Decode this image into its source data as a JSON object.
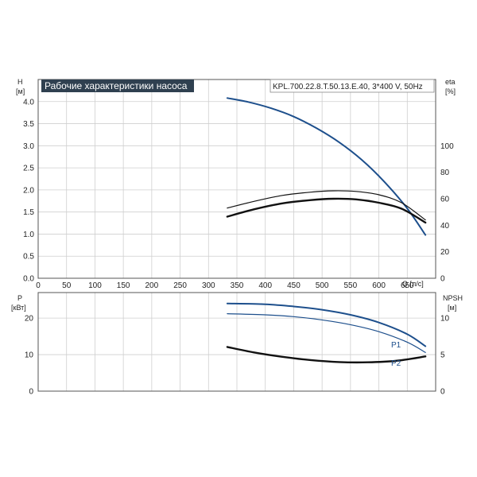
{
  "chart_data": [
    {
      "type": "line",
      "title": "Рабочие характеристики насоса",
      "subtitle": "KPL.700.22.8.T.50.13.E.40, 3*400 V, 50Hz",
      "xlabel": "Q [л/с]",
      "ylabel": "H [м]",
      "ylabel_name": "H",
      "ylabel_unit": "[м]",
      "y2label_name": "eta",
      "y2label_unit": "[%]",
      "x_unit_label": "Q [л/с]",
      "xlim": [
        0,
        700
      ],
      "ylim": [
        0,
        4.5
      ],
      "y2lim": [
        0,
        150
      ],
      "x_ticks": [
        "0",
        "50",
        "100",
        "150",
        "200",
        "250",
        "300",
        "350",
        "400",
        "450",
        "500",
        "550",
        "600",
        "650"
      ],
      "y_ticks": [
        "0.0",
        "0.5",
        "1.0",
        "1.5",
        "2.0",
        "2.5",
        "3.0",
        "3.5",
        "4.0"
      ],
      "y2_ticks": [
        "0",
        "20",
        "40",
        "60",
        "80",
        "100"
      ],
      "grid": true,
      "series": [
        {
          "axis": "left",
          "color": "#1d4f8c",
          "x": [
            333,
            370,
            410,
            450,
            490,
            530,
            570,
            610,
            650,
            682
          ],
          "y": [
            4.08,
            3.99,
            3.85,
            3.66,
            3.4,
            3.08,
            2.68,
            2.18,
            1.58,
            0.98
          ]
        },
        {
          "axis": "right",
          "color": "#111111",
          "x": [
            333,
            380,
            430,
            480,
            520,
            560,
            600,
            640,
            682
          ],
          "y": [
            53,
            58,
            62.5,
            65,
            66,
            65.5,
            63,
            57,
            44
          ]
        },
        {
          "axis": "right",
          "color": "#111111",
          "x": [
            333,
            380,
            430,
            480,
            520,
            560,
            600,
            640,
            682
          ],
          "y": [
            46.5,
            52,
            56.5,
            59,
            60,
            59.5,
            57,
            52.5,
            42
          ]
        }
      ]
    },
    {
      "type": "line",
      "ylabel_name": "P",
      "ylabel_unit": "[кВт]",
      "y2label_name": "NPSH",
      "y2label_unit": "[м]",
      "xlim": [
        0,
        700
      ],
      "ylim": [
        0,
        27
      ],
      "y2lim": [
        0,
        13.5
      ],
      "y_ticks": [
        "0",
        "10",
        "20"
      ],
      "y2_ticks": [
        "0",
        "5",
        "10"
      ],
      "grid": true,
      "series": [
        {
          "name": "P1",
          "axis": "left",
          "color": "#1d4f8c",
          "x": [
            333,
            400,
            450,
            500,
            550,
            600,
            650,
            682
          ],
          "y": [
            24.0,
            23.8,
            23.2,
            22.3,
            20.9,
            18.8,
            15.6,
            12.3
          ]
        },
        {
          "name": "P2",
          "axis": "left",
          "color": "#1d4f8c",
          "x": [
            333,
            400,
            450,
            500,
            550,
            600,
            650,
            682
          ],
          "y": [
            21.2,
            20.9,
            20.4,
            19.5,
            18.2,
            16.3,
            13.4,
            10.6
          ]
        },
        {
          "axis": "right",
          "color": "#111111",
          "x": [
            333,
            380,
            430,
            480,
            530,
            580,
            630,
            682
          ],
          "y": [
            6.05,
            5.3,
            4.7,
            4.25,
            3.98,
            3.95,
            4.15,
            4.75
          ]
        }
      ]
    }
  ]
}
